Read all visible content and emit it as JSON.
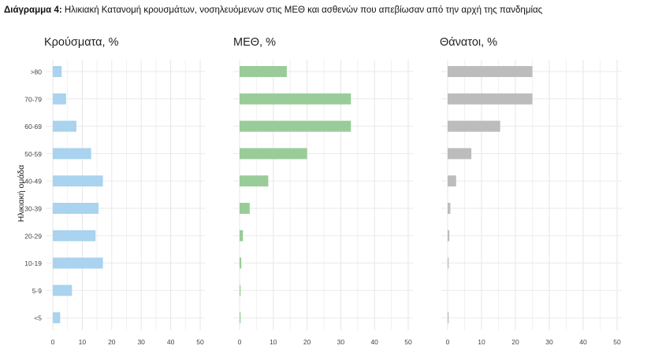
{
  "page": {
    "title_prefix": "Διάγραμμα 4:",
    "title_text": "Ηλικιακή Κατανομή κρουσμάτων, νοσηλευόμενων στις ΜΕΘ και ασθενών που απεβίωσαν από την αρχή της πανδημίας"
  },
  "chart_data": {
    "type": "bar",
    "orientation": "horizontal",
    "ylabel": "Ηλικιακή ομάδα",
    "categories": [
      ">80",
      "70-79",
      "60-69",
      "50-59",
      "40-49",
      "30-39",
      "20-29",
      "10-19",
      "5-9",
      "<5"
    ],
    "xlim": [
      0,
      50
    ],
    "xticks": [
      0,
      10,
      20,
      30,
      40,
      50
    ],
    "grid": true,
    "panels": [
      {
        "title": "Κρούσματα, %",
        "color": "#a9d3ee",
        "values": [
          3,
          4.5,
          8,
          13,
          17,
          15.5,
          14.5,
          17,
          6.5,
          2.5
        ]
      },
      {
        "title": "ΜΕΘ, %",
        "color": "#99cc99",
        "values": [
          14,
          33,
          33,
          20,
          8.5,
          3,
          1,
          0.5,
          0.3,
          0.3
        ]
      },
      {
        "title": "Θάνατοι, %",
        "color": "#bcbcbc",
        "values": [
          25,
          25,
          15.5,
          7,
          2.5,
          0.8,
          0.5,
          0.3,
          0,
          0.3
        ]
      }
    ]
  }
}
